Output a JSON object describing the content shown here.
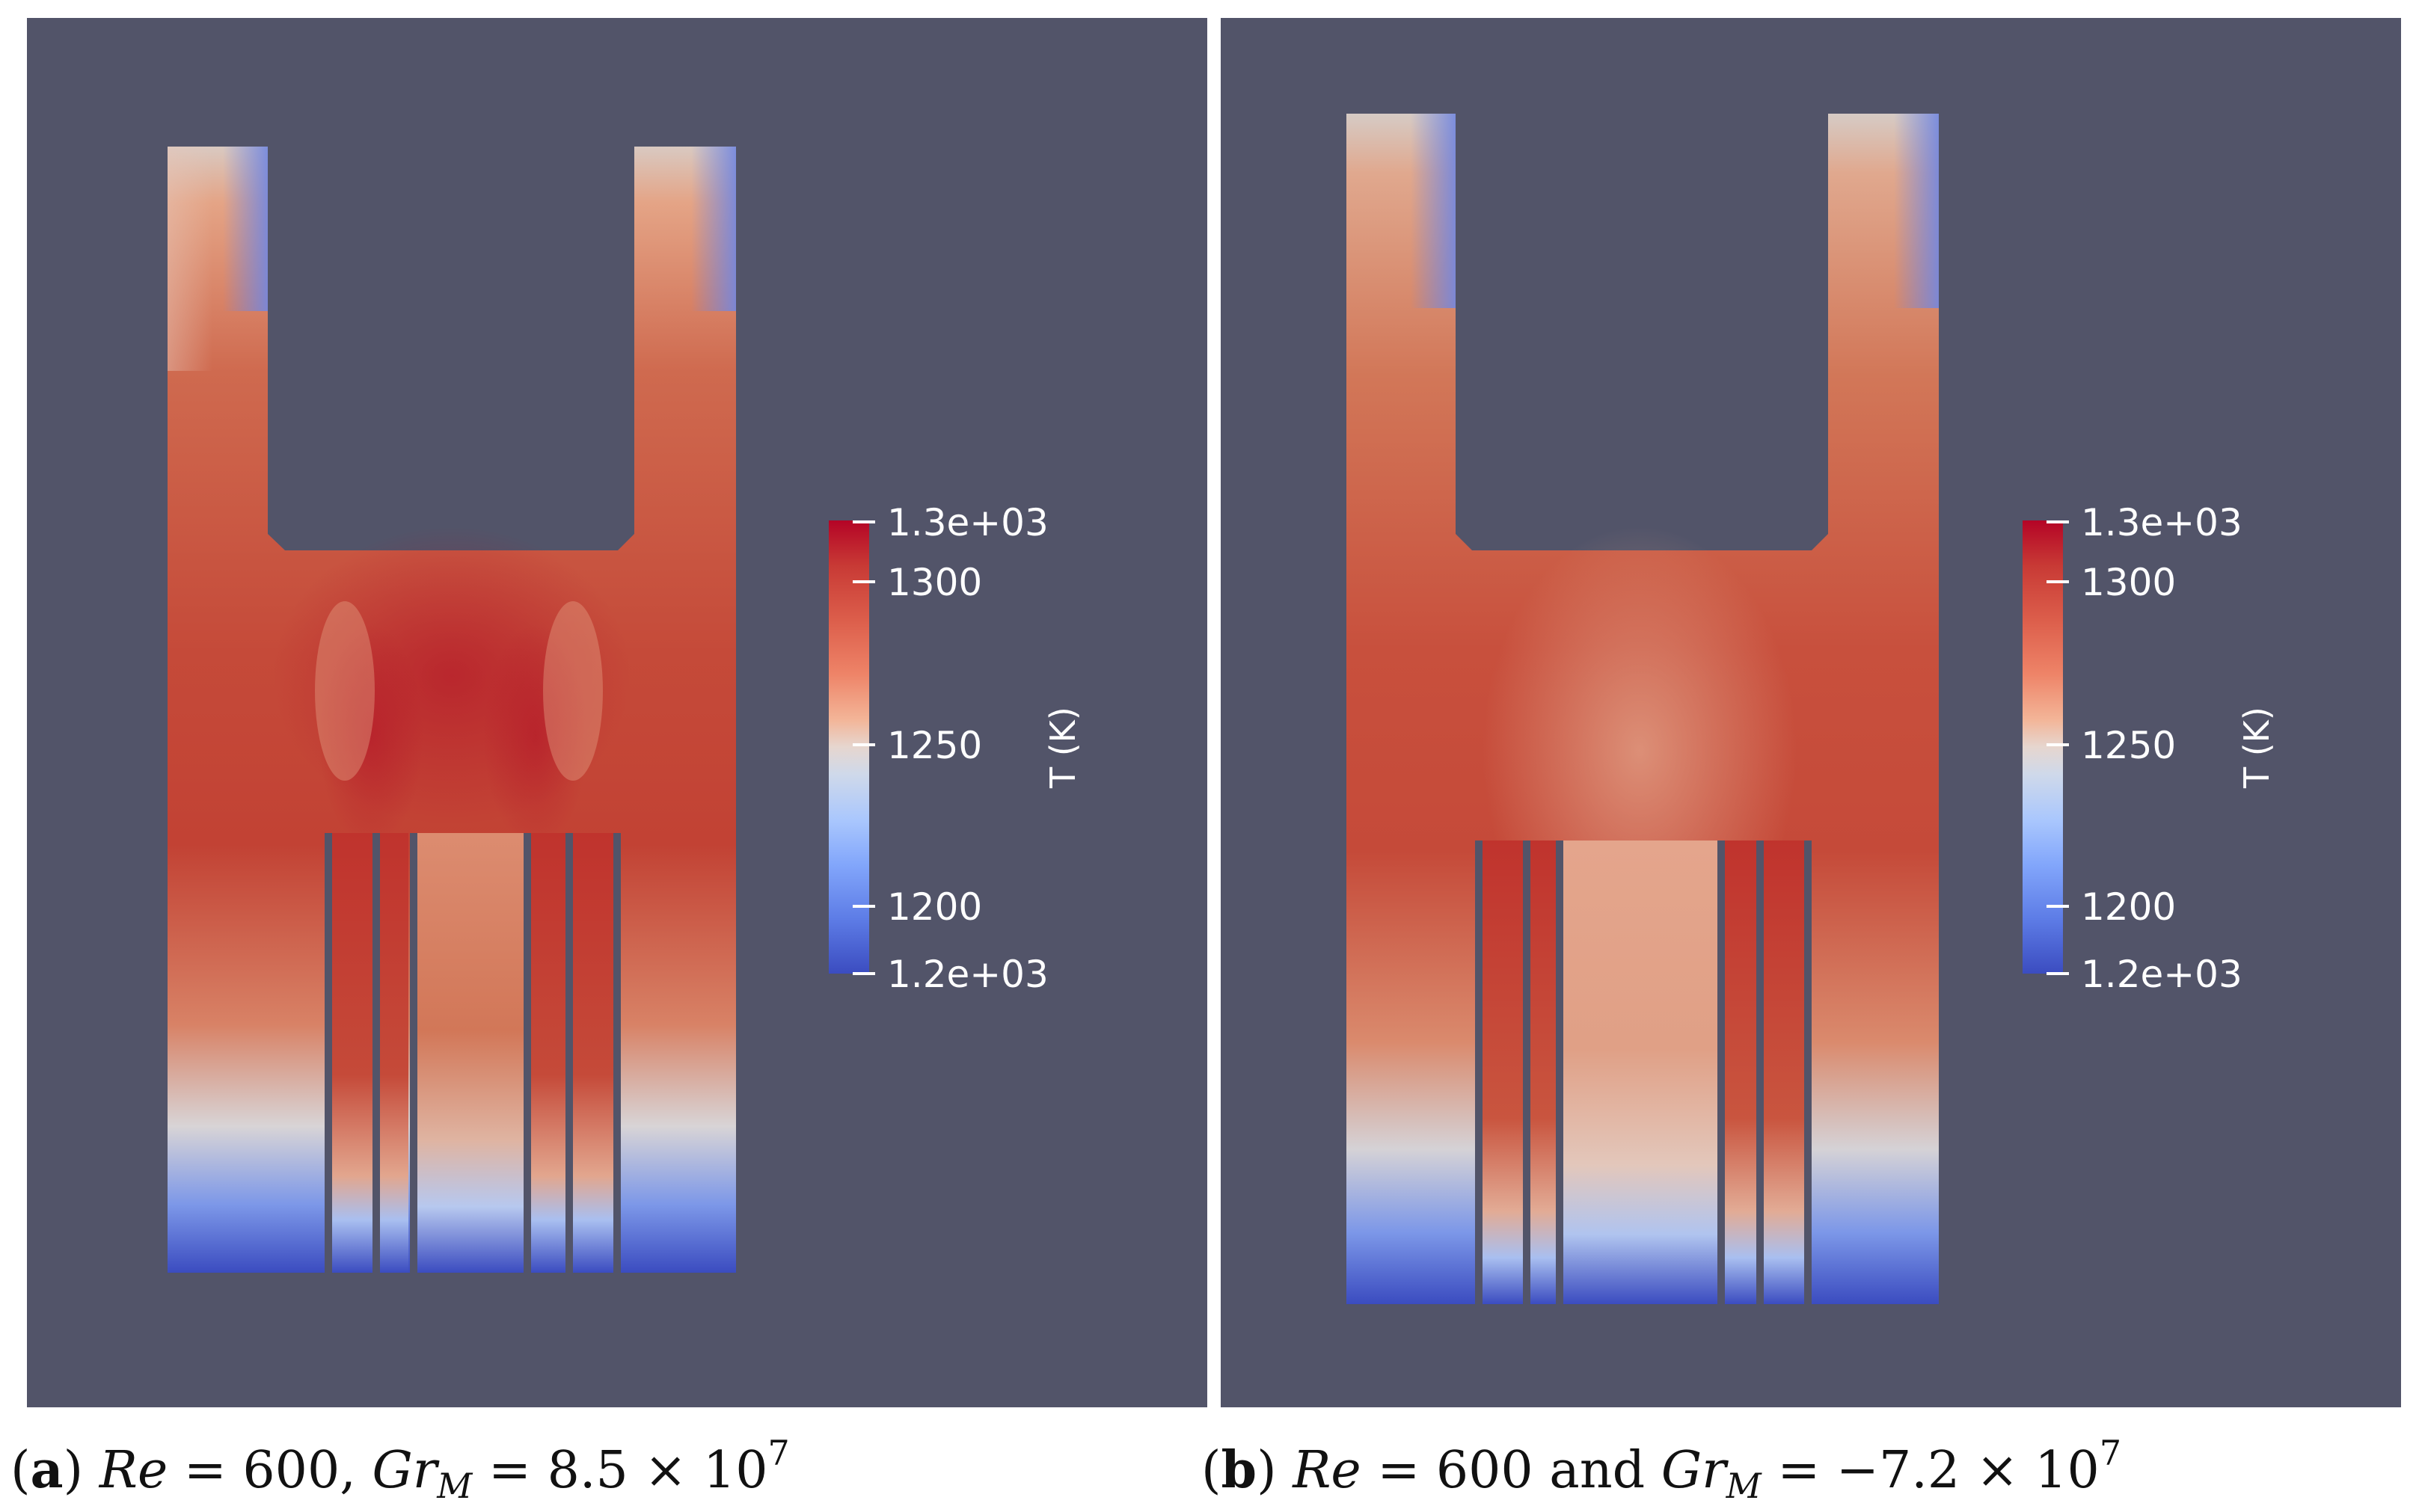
{
  "panels": [
    {
      "id": "a",
      "colorbar": {
        "title": "T (K)",
        "max_label": "1.3e+03",
        "min_label": "1.2e+03",
        "ticks": [
          "1300",
          "1250",
          "1200"
        ]
      },
      "caption": {
        "tag": "a",
        "re_symbol": "Re",
        "re_value": "= 600,",
        "gr_symbol": "Gr",
        "gr_subscript": "M",
        "gr_value": "= 8.5 × 10",
        "gr_exponent": "7"
      }
    },
    {
      "id": "b",
      "colorbar": {
        "title": "T (K)",
        "max_label": "1.3e+03",
        "min_label": "1.2e+03",
        "ticks": [
          "1300",
          "1250",
          "1200"
        ]
      },
      "caption": {
        "tag": "b",
        "re_symbol": "Re",
        "re_value": "= 600 and",
        "gr_symbol": "Gr",
        "gr_subscript": "M",
        "gr_value": "= −7.2 × 10",
        "gr_exponent": "7"
      }
    }
  ],
  "colors": {
    "background": "#525469",
    "hot": "#b40426",
    "neutral": "#dddcdc",
    "cold": "#3b4cc0"
  }
}
